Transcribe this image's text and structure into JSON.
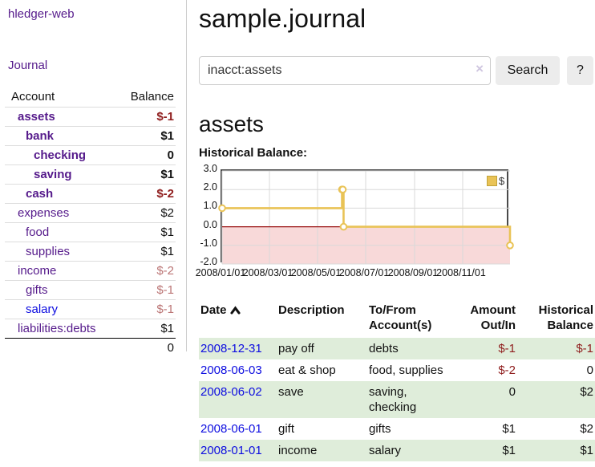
{
  "app": {
    "brand": "hledger-web"
  },
  "nav": {
    "journal": "Journal"
  },
  "sidebar": {
    "col_account": "Account",
    "col_balance": "Balance",
    "rows": [
      {
        "account": "assets",
        "balance": "$-1",
        "indent": 0,
        "bold": true,
        "balance_color": "negative"
      },
      {
        "account": "bank",
        "balance": "$1",
        "indent": 1,
        "bold": true,
        "balance_color": "normal"
      },
      {
        "account": "checking",
        "balance": "0",
        "indent": 2,
        "bold": true,
        "balance_color": "normal"
      },
      {
        "account": "saving",
        "balance": "$1",
        "indent": 2,
        "bold": true,
        "balance_color": "normal"
      },
      {
        "account": "cash",
        "balance": "$-2",
        "indent": 1,
        "bold": true,
        "balance_color": "negative"
      },
      {
        "account": "expenses",
        "balance": "$2",
        "indent": 0,
        "bold": false,
        "balance_color": "normal"
      },
      {
        "account": "food",
        "balance": "$1",
        "indent": 1,
        "bold": false,
        "balance_color": "normal"
      },
      {
        "account": "supplies",
        "balance": "$1",
        "indent": 1,
        "bold": false,
        "balance_color": "normal"
      },
      {
        "account": "income",
        "balance": "$-2",
        "indent": 0,
        "bold": false,
        "balance_color": "negative-muted"
      },
      {
        "account": "gifts",
        "balance": "$-1",
        "indent": 1,
        "bold": false,
        "balance_color": "negative-muted"
      },
      {
        "account": "salary",
        "balance": "$-1",
        "indent": 1,
        "bold": false,
        "balance_color": "negative-muted",
        "link_color": "blue"
      },
      {
        "account": "liabilities:debts",
        "balance": "$1",
        "indent": 0,
        "bold": false,
        "balance_color": "normal"
      }
    ],
    "total": "0"
  },
  "main": {
    "title": "sample.journal",
    "search": {
      "value": "inacct:assets",
      "clear": "×",
      "button": "Search",
      "help": "?"
    },
    "heading": "assets",
    "chart_label": "Historical Balance:"
  },
  "chart_data": {
    "type": "line",
    "step": true,
    "title": "Historical Balance",
    "series": [
      {
        "name": "$",
        "color": "#e9c356",
        "points": [
          [
            "2008-01-01",
            1
          ],
          [
            "2008-06-01",
            2
          ],
          [
            "2008-06-02",
            2
          ],
          [
            "2008-06-03",
            0
          ],
          [
            "2008-12-31",
            -1
          ]
        ]
      }
    ],
    "x_domain": [
      "2008-01-01",
      "2008-12-31"
    ],
    "ylim": [
      -2,
      3
    ],
    "yticks": [
      {
        "label": "3.0",
        "value": 3
      },
      {
        "label": "2.0",
        "value": 2
      },
      {
        "label": "1.0",
        "value": 1
      },
      {
        "label": "0.0",
        "value": 0
      },
      {
        "label": "-1.0",
        "value": -1
      },
      {
        "label": "-2.0",
        "value": -2
      }
    ],
    "xticks": [
      {
        "label": "2008/01/01",
        "date": "2008-01-01"
      },
      {
        "label": "2008/03/01",
        "date": "2008-03-01"
      },
      {
        "label": "2008/05/01",
        "date": "2008-05-01"
      },
      {
        "label": "2008/07/01",
        "date": "2008-07-01"
      },
      {
        "label": "2008/09/01",
        "date": "2008-09-01"
      },
      {
        "label": "2008/11/01",
        "date": "2008-11-01"
      }
    ],
    "legend": {
      "label": "$",
      "position": "top-right"
    },
    "grid": true,
    "colors": {
      "line": "#e9c356",
      "marker_fill": "#ffffff",
      "negative_region": "#f8d9d9",
      "zero_line": "#991111",
      "gridline": "#d9d9d9",
      "plot_border": "#4a4a4a"
    }
  },
  "register": {
    "headers": [
      "Date",
      "Description",
      "To/From Account(s)",
      "Amount Out/In",
      "Historical Balance"
    ],
    "sort": {
      "column": "Date",
      "direction": "ascending"
    },
    "rows": [
      {
        "date": "2008-12-31",
        "description": "pay off",
        "accounts": "debts",
        "amount": "$-1",
        "amount_negative": true,
        "balance": "$-1",
        "balance_negative": true,
        "shaded": true
      },
      {
        "date": "2008-06-03",
        "description": "eat & shop",
        "accounts": "food, supplies",
        "amount": "$-2",
        "amount_negative": true,
        "balance": "0",
        "balance_negative": false,
        "shaded": false
      },
      {
        "date": "2008-06-02",
        "description": "save",
        "accounts": "saving, checking",
        "amount": "0",
        "amount_negative": false,
        "balance": "$2",
        "balance_negative": false,
        "shaded": true
      },
      {
        "date": "2008-06-01",
        "description": "gift",
        "accounts": "gifts",
        "amount": "$1",
        "amount_negative": false,
        "balance": "$2",
        "balance_negative": false,
        "shaded": false
      },
      {
        "date": "2008-01-01",
        "description": "income",
        "accounts": "salary",
        "amount": "$1",
        "amount_negative": false,
        "balance": "$1",
        "balance_negative": false,
        "shaded": true
      }
    ]
  }
}
